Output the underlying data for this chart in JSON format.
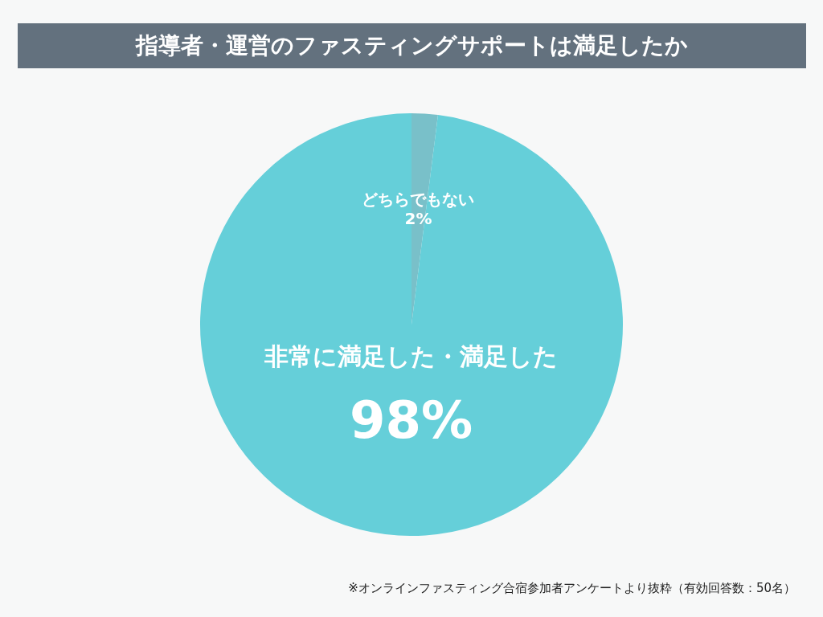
{
  "chart_data": {
    "type": "pie",
    "title": "指導者・運営のファスティングサポートは満足したか",
    "categories": [
      "どちらでもない",
      "非常に満足した・満足した"
    ],
    "values": [
      2,
      98
    ],
    "colors": [
      "#79c0c9",
      "#65cfd9"
    ],
    "value_labels": [
      "2%",
      "98%"
    ],
    "legend": false,
    "annotations": [
      "※オンラインファスティング合宿参加者アンケートより抜粋（有効回答数：50名）"
    ]
  }
}
